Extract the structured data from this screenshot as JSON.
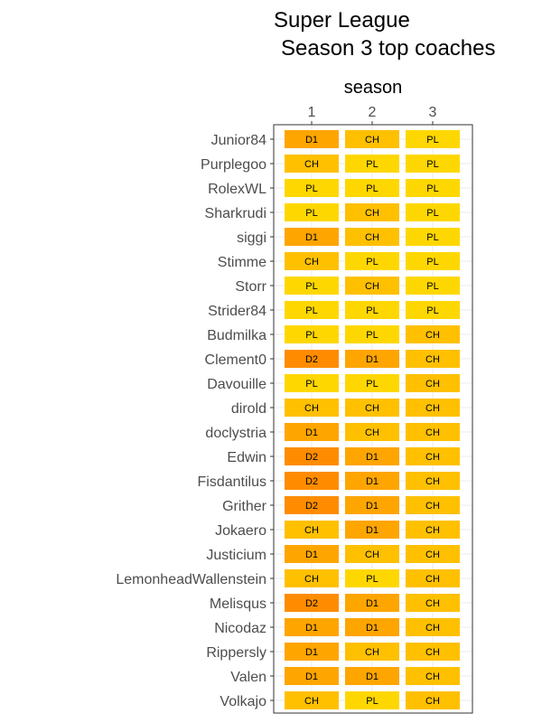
{
  "chart_data": {
    "type": "heatmap",
    "title": [
      "Super League",
      "Season 3 top coaches"
    ],
    "x_axis_title": "season",
    "x_axis_position": "top",
    "columns": [
      "1",
      "2",
      "3"
    ],
    "rows": [
      {
        "label": "Junior84",
        "values": [
          "D1",
          "CH",
          "PL"
        ]
      },
      {
        "label": "Purplegoo",
        "values": [
          "CH",
          "PL",
          "PL"
        ]
      },
      {
        "label": "RolexWL",
        "values": [
          "PL",
          "PL",
          "PL"
        ]
      },
      {
        "label": "Sharkrudi",
        "values": [
          "PL",
          "CH",
          "PL"
        ]
      },
      {
        "label": "siggi",
        "values": [
          "D1",
          "CH",
          "PL"
        ]
      },
      {
        "label": "Stimme",
        "values": [
          "CH",
          "PL",
          "PL"
        ]
      },
      {
        "label": "Storr",
        "values": [
          "PL",
          "CH",
          "PL"
        ]
      },
      {
        "label": "Strider84",
        "values": [
          "PL",
          "PL",
          "PL"
        ]
      },
      {
        "label": "Budmilka",
        "values": [
          "PL",
          "PL",
          "CH"
        ]
      },
      {
        "label": "Clement0",
        "values": [
          "D2",
          "D1",
          "CH"
        ]
      },
      {
        "label": "Davouille",
        "values": [
          "PL",
          "PL",
          "CH"
        ]
      },
      {
        "label": "dirold",
        "values": [
          "CH",
          "CH",
          "CH"
        ]
      },
      {
        "label": "doclystria",
        "values": [
          "D1",
          "CH",
          "CH"
        ]
      },
      {
        "label": "Edwin",
        "values": [
          "D2",
          "D1",
          "CH"
        ]
      },
      {
        "label": "Fisdantilus",
        "values": [
          "D2",
          "D1",
          "CH"
        ]
      },
      {
        "label": "Grither",
        "values": [
          "D2",
          "D1",
          "CH"
        ]
      },
      {
        "label": "Jokaero",
        "values": [
          "CH",
          "D1",
          "CH"
        ]
      },
      {
        "label": "Justicium",
        "values": [
          "D1",
          "CH",
          "CH"
        ]
      },
      {
        "label": "LemonheadWallenstein",
        "values": [
          "CH",
          "PL",
          "CH"
        ]
      },
      {
        "label": "Melisqus",
        "values": [
          "D2",
          "D1",
          "CH"
        ]
      },
      {
        "label": "Nicodaz",
        "values": [
          "D1",
          "D1",
          "CH"
        ]
      },
      {
        "label": "Rippersly",
        "values": [
          "D1",
          "CH",
          "CH"
        ]
      },
      {
        "label": "Valen",
        "values": [
          "D1",
          "D1",
          "CH"
        ]
      },
      {
        "label": "Volkajo",
        "values": [
          "CH",
          "PL",
          "CH"
        ]
      }
    ],
    "category_colors": {
      "PL": "#FFD700",
      "CH": "#FFC000",
      "D1": "#FFA500",
      "D2": "#FF8C00"
    },
    "grid": true,
    "legend": "none"
  }
}
